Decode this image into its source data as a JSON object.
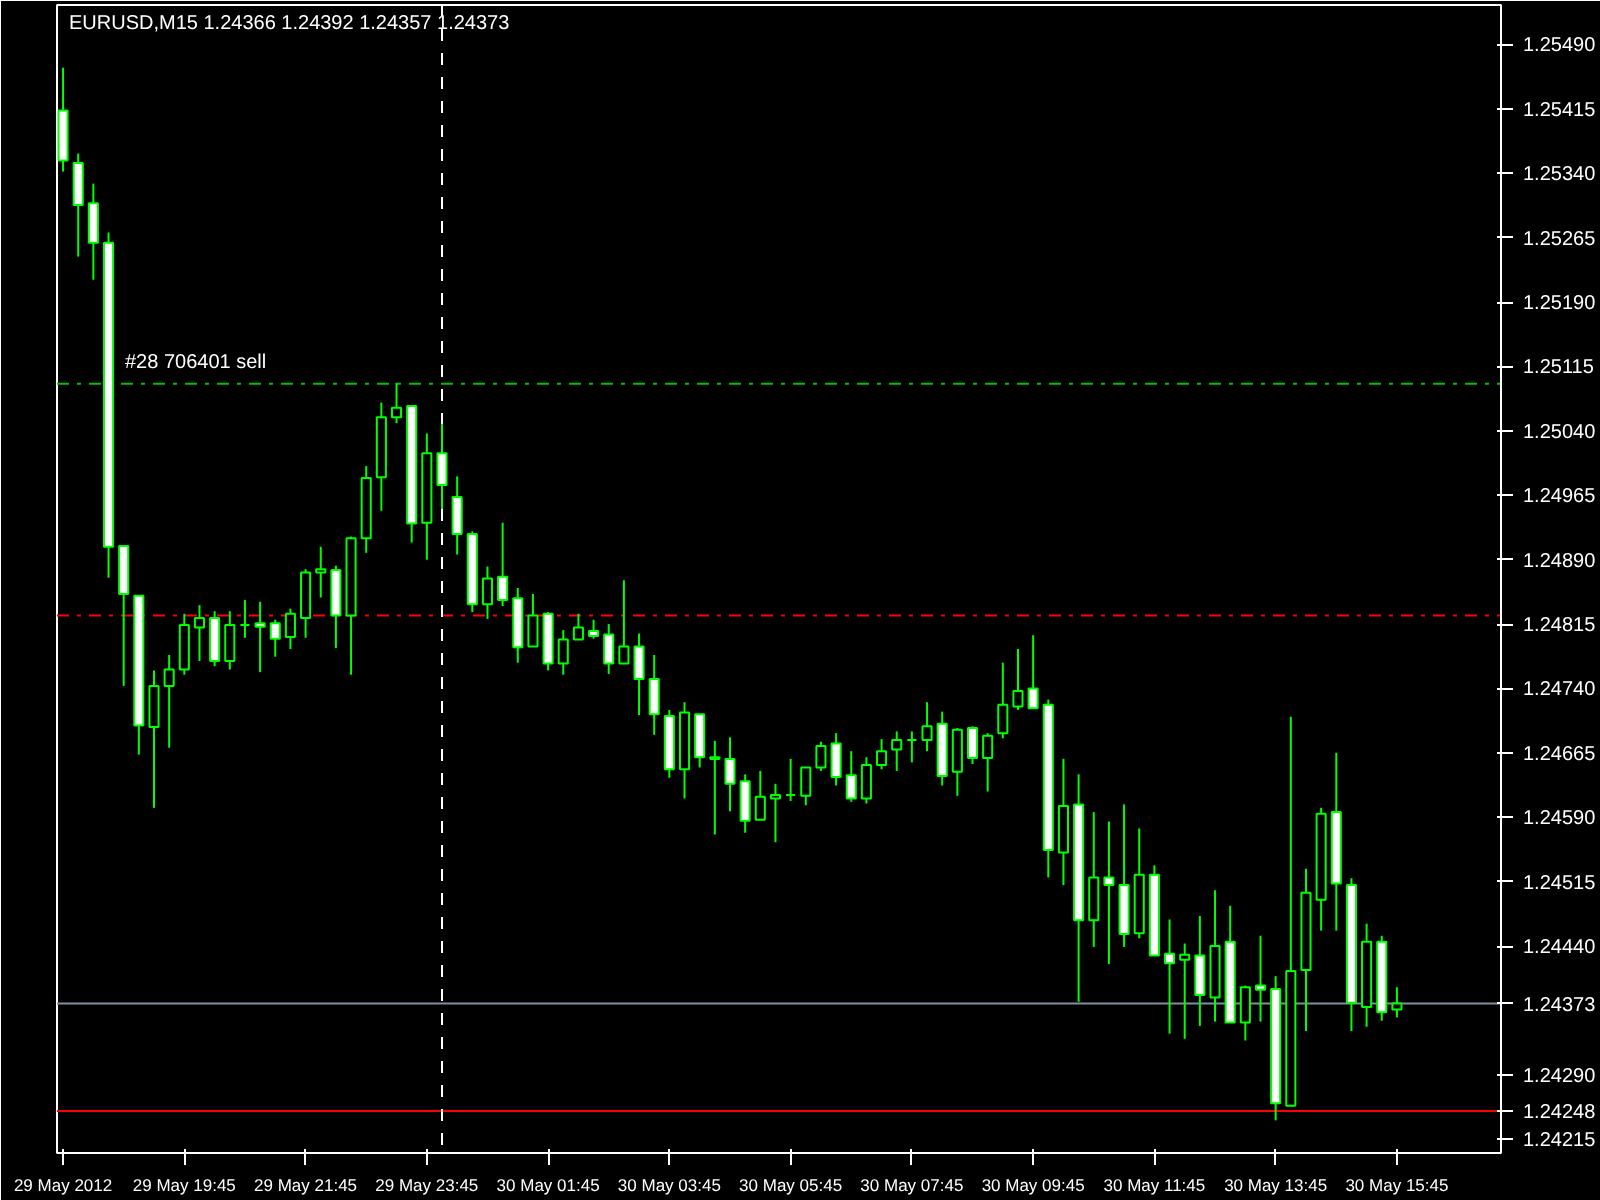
{
  "chart_data": {
    "type": "candlestick",
    "title": "EURUSD,M15  1.24366 1.24392 1.24357 1.24373",
    "color": "#00ff00",
    "grid": false,
    "x": [
      "2012-05-29T17:45",
      "2012-05-29T18:00",
      "2012-05-29T18:15",
      "2012-05-29T18:30",
      "2012-05-29T18:45",
      "2012-05-29T19:00",
      "2012-05-29T19:15",
      "2012-05-29T19:30",
      "2012-05-29T19:45",
      "2012-05-29T20:00",
      "2012-05-29T20:15",
      "2012-05-29T20:30",
      "2012-05-29T20:45",
      "2012-05-29T21:00",
      "2012-05-29T21:15",
      "2012-05-29T21:30",
      "2012-05-29T21:45",
      "2012-05-29T22:00",
      "2012-05-29T22:15",
      "2012-05-29T22:30",
      "2012-05-29T22:45",
      "2012-05-29T23:00",
      "2012-05-29T23:15",
      "2012-05-29T23:30",
      "2012-05-29T23:45",
      "2012-05-30T00:00",
      "2012-05-30T00:15",
      "2012-05-30T00:30",
      "2012-05-30T00:45",
      "2012-05-30T01:00",
      "2012-05-30T01:15",
      "2012-05-30T01:30",
      "2012-05-30T01:45",
      "2012-05-30T02:00",
      "2012-05-30T02:15",
      "2012-05-30T02:30",
      "2012-05-30T02:45",
      "2012-05-30T03:00",
      "2012-05-30T03:15",
      "2012-05-30T03:30",
      "2012-05-30T03:45",
      "2012-05-30T04:00",
      "2012-05-30T04:15",
      "2012-05-30T04:30",
      "2012-05-30T04:45",
      "2012-05-30T05:00",
      "2012-05-30T05:15",
      "2012-05-30T05:30",
      "2012-05-30T05:45",
      "2012-05-30T06:00",
      "2012-05-30T06:15",
      "2012-05-30T06:30",
      "2012-05-30T06:45",
      "2012-05-30T07:00",
      "2012-05-30T07:15",
      "2012-05-30T07:30",
      "2012-05-30T07:45",
      "2012-05-30T08:00",
      "2012-05-30T08:15",
      "2012-05-30T08:30",
      "2012-05-30T08:45",
      "2012-05-30T09:00",
      "2012-05-30T09:15",
      "2012-05-30T09:30",
      "2012-05-30T09:45",
      "2012-05-30T10:00",
      "2012-05-30T10:15",
      "2012-05-30T10:30",
      "2012-05-30T10:45",
      "2012-05-30T11:00",
      "2012-05-30T11:15",
      "2012-05-30T11:30",
      "2012-05-30T11:45",
      "2012-05-30T12:00",
      "2012-05-30T12:15",
      "2012-05-30T12:30",
      "2012-05-30T12:45",
      "2012-05-30T13:00",
      "2012-05-30T13:15",
      "2012-05-30T13:30",
      "2012-05-30T13:45",
      "2012-05-30T14:00",
      "2012-05-30T14:15",
      "2012-05-30T14:30",
      "2012-05-30T14:45",
      "2012-05-30T15:00",
      "2012-05-30T15:15",
      "2012-05-30T15:30",
      "2012-05-30T15:45"
    ],
    "ohlc": [
      [
        1.25413,
        1.25463,
        1.25342,
        1.25355
      ],
      [
        1.25352,
        1.25363,
        1.25243,
        1.25303
      ],
      [
        1.25305,
        1.25328,
        1.25216,
        1.25259
      ],
      [
        1.25259,
        1.25271,
        1.24869,
        1.24905
      ],
      [
        1.24906,
        1.24906,
        1.24743,
        1.2485
      ],
      [
        1.24848,
        1.24848,
        1.24663,
        1.24697
      ],
      [
        1.24695,
        1.24761,
        1.24601,
        1.24743
      ],
      [
        1.24743,
        1.24779,
        1.24671,
        1.24762
      ],
      [
        1.24762,
        1.24827,
        1.24756,
        1.24814
      ],
      [
        1.24811,
        1.24837,
        1.24772,
        1.24822
      ],
      [
        1.24822,
        1.2483,
        1.24766,
        1.24772
      ],
      [
        1.24772,
        1.2483,
        1.24762,
        1.24814
      ],
      [
        1.24814,
        1.24843,
        1.24799,
        1.24814
      ],
      [
        1.24816,
        1.24841,
        1.24759,
        1.24812
      ],
      [
        1.24816,
        1.2482,
        1.24777,
        1.24798
      ],
      [
        1.248,
        1.24833,
        1.24786,
        1.24827
      ],
      [
        1.24822,
        1.24879,
        1.24799,
        1.24875
      ],
      [
        1.24875,
        1.24905,
        1.24846,
        1.24879
      ],
      [
        1.24878,
        1.24883,
        1.24787,
        1.24825
      ],
      [
        1.24825,
        1.24917,
        1.24756,
        1.24915
      ],
      [
        1.24915,
        1.24999,
        1.24898,
        1.24985
      ],
      [
        1.24986,
        1.25073,
        1.24947,
        1.25056
      ],
      [
        1.25056,
        1.25096,
        1.25049,
        1.25067
      ],
      [
        1.25069,
        1.25069,
        1.2491,
        1.24932
      ],
      [
        1.24933,
        1.25037,
        1.2489,
        1.25014
      ],
      [
        1.25014,
        1.25048,
        1.24949,
        1.24977
      ],
      [
        1.24963,
        1.24987,
        1.24896,
        1.2492
      ],
      [
        1.2492,
        1.24923,
        1.24829,
        1.24838
      ],
      [
        1.24838,
        1.24882,
        1.24821,
        1.24868
      ],
      [
        1.2487,
        1.24933,
        1.24836,
        1.24843
      ],
      [
        1.24845,
        1.24857,
        1.2477,
        1.24788
      ],
      [
        1.24789,
        1.2485,
        1.24789,
        1.24825
      ],
      [
        1.24827,
        1.24829,
        1.24761,
        1.24769
      ],
      [
        1.24769,
        1.24808,
        1.24756,
        1.24797
      ],
      [
        1.24797,
        1.24827,
        1.24797,
        1.24811
      ],
      [
        1.24807,
        1.2482,
        1.24798,
        1.24801
      ],
      [
        1.24803,
        1.24815,
        1.24757,
        1.24769
      ],
      [
        1.24769,
        1.24866,
        1.24769,
        1.24789
      ],
      [
        1.24789,
        1.24804,
        1.24709,
        1.24751
      ],
      [
        1.24751,
        1.24779,
        1.24686,
        1.2471
      ],
      [
        1.24708,
        1.24715,
        1.24636,
        1.24646
      ],
      [
        1.24646,
        1.24724,
        1.24612,
        1.24712
      ],
      [
        1.2471,
        1.2471,
        1.24648,
        1.2466
      ],
      [
        1.2466,
        1.24679,
        1.2457,
        1.24658
      ],
      [
        1.24658,
        1.24683,
        1.24597,
        1.24629
      ],
      [
        1.24632,
        1.2464,
        1.24572,
        1.24586
      ],
      [
        1.24587,
        1.24644,
        1.24587,
        1.24614
      ],
      [
        1.24612,
        1.24629,
        1.24561,
        1.24616
      ],
      [
        1.24616,
        1.24658,
        1.24609,
        1.24616
      ],
      [
        1.24615,
        1.24648,
        1.24604,
        1.24648
      ],
      [
        1.24648,
        1.24678,
        1.24644,
        1.24673
      ],
      [
        1.24676,
        1.24688,
        1.24627,
        1.24637
      ],
      [
        1.24639,
        1.24667,
        1.24608,
        1.24612
      ],
      [
        1.24612,
        1.2466,
        1.24606,
        1.24651
      ],
      [
        1.24651,
        1.24681,
        1.24646,
        1.24667
      ],
      [
        1.24669,
        1.2469,
        1.24644,
        1.2468
      ],
      [
        1.2468,
        1.2469,
        1.24654,
        1.2468
      ],
      [
        1.2468,
        1.24724,
        1.24667,
        1.24696
      ],
      [
        1.24699,
        1.24713,
        1.24627,
        1.24638
      ],
      [
        1.24643,
        1.24694,
        1.24615,
        1.24692
      ],
      [
        1.24694,
        1.24696,
        1.24652,
        1.24659
      ],
      [
        1.24659,
        1.24688,
        1.2462,
        1.24685
      ],
      [
        1.24688,
        1.2477,
        1.24682,
        1.24721
      ],
      [
        1.24719,
        1.24786,
        1.24715,
        1.24737
      ],
      [
        1.2474,
        1.24802,
        1.24717,
        1.24717
      ],
      [
        1.24721,
        1.24727,
        1.2452,
        1.24552
      ],
      [
        1.24549,
        1.24658,
        1.24511,
        1.24603
      ],
      [
        1.24605,
        1.2464,
        1.24375,
        1.2447
      ],
      [
        1.2447,
        1.24596,
        1.24439,
        1.2452
      ],
      [
        1.2452,
        1.24585,
        1.24419,
        1.24511
      ],
      [
        1.24511,
        1.24605,
        1.24439,
        1.24454
      ],
      [
        1.24455,
        1.24577,
        1.24449,
        1.24523
      ],
      [
        1.24523,
        1.24534,
        1.24429,
        1.24429
      ],
      [
        1.24431,
        1.24471,
        1.24338,
        1.2442
      ],
      [
        1.24424,
        1.24443,
        1.24332,
        1.2443
      ],
      [
        1.24429,
        1.24475,
        1.24347,
        1.24383
      ],
      [
        1.2438,
        1.24505,
        1.24352,
        1.2444
      ],
      [
        1.24445,
        1.24487,
        1.24351,
        1.24351
      ],
      [
        1.24351,
        1.24394,
        1.2433,
        1.24392
      ],
      [
        1.24394,
        1.24452,
        1.24352,
        1.24389
      ],
      [
        1.2439,
        1.24405,
        1.24237,
        1.24257
      ],
      [
        1.24254,
        1.24707,
        1.24254,
        1.24411
      ],
      [
        1.24412,
        1.2453,
        1.24341,
        1.24502
      ],
      [
        1.24494,
        1.24601,
        1.24458,
        1.24594
      ],
      [
        1.24596,
        1.24665,
        1.24458,
        1.24513
      ],
      [
        1.24511,
        1.24519,
        1.24341,
        1.24374
      ],
      [
        1.24369,
        1.24466,
        1.24346,
        1.24445
      ],
      [
        1.24445,
        1.24452,
        1.24353,
        1.24363
      ],
      [
        1.24366,
        1.24392,
        1.24357,
        1.24373
      ]
    ],
    "xlim": [
      "2012-05-29T17:39",
      "2012-05-30T17:28"
    ],
    "xticks": [
      {
        "value": "2012-05-29T17:45",
        "label": "29 May 2012"
      },
      {
        "value": "2012-05-29T19:45",
        "label": "29 May 19:45"
      },
      {
        "value": "2012-05-29T21:45",
        "label": "29 May 21:45"
      },
      {
        "value": "2012-05-29T23:45",
        "label": "29 May 23:45"
      },
      {
        "value": "2012-05-30T01:45",
        "label": "30 May 01:45"
      },
      {
        "value": "2012-05-30T03:45",
        "label": "30 May 03:45"
      },
      {
        "value": "2012-05-30T05:45",
        "label": "30 May 05:45"
      },
      {
        "value": "2012-05-30T07:45",
        "label": "30 May 07:45"
      },
      {
        "value": "2012-05-30T09:45",
        "label": "30 May 09:45"
      },
      {
        "value": "2012-05-30T11:45",
        "label": "30 May 11:45"
      },
      {
        "value": "2012-05-30T13:45",
        "label": "30 May 13:45"
      },
      {
        "value": "2012-05-30T15:45",
        "label": "30 May 15:45"
      }
    ],
    "ylim": [
      1.24199,
      1.25536
    ],
    "yticks": [
      {
        "value": 1.24215,
        "label": "1.24215"
      },
      {
        "value": 1.2429,
        "label": "1.24290"
      },
      {
        "value": 1.2444,
        "label": "1.24440"
      },
      {
        "value": 1.24515,
        "label": "1.24515"
      },
      {
        "value": 1.2459,
        "label": "1.24590"
      },
      {
        "value": 1.24665,
        "label": "1.24665"
      },
      {
        "value": 1.2474,
        "label": "1.24740"
      },
      {
        "value": 1.24815,
        "label": "1.24815"
      },
      {
        "value": 1.2489,
        "label": "1.24890"
      },
      {
        "value": 1.24965,
        "label": "1.24965"
      },
      {
        "value": 1.2504,
        "label": "1.25040"
      },
      {
        "value": 1.25115,
        "label": "1.25115"
      },
      {
        "value": 1.2519,
        "label": "1.25190"
      },
      {
        "value": 1.25265,
        "label": "1.25265"
      },
      {
        "value": 1.2534,
        "label": "1.25340"
      },
      {
        "value": 1.25415,
        "label": "1.25415"
      },
      {
        "value": 1.2549,
        "label": "1.25490"
      }
    ],
    "ref_lines": [
      {
        "axis": "y",
        "value": 1.25095,
        "label": "#28 706401 sell",
        "color": "#00c000",
        "line_style": "dashed"
      },
      {
        "axis": "y",
        "value": 1.24825,
        "label": null,
        "color": "#ff0000",
        "line_style": "dashed"
      },
      {
        "axis": "y",
        "value": 1.24373,
        "label": "1.24373",
        "color": "#8090a0",
        "line_style": "solid"
      },
      {
        "axis": "y",
        "value": 1.24248,
        "label": "1.24248",
        "color": "#ff0000",
        "line_style": "solid"
      },
      {
        "axis": "x",
        "value": "2012-05-30T00:00",
        "label": null,
        "color": "#ffffff",
        "line_style": "dotted"
      }
    ]
  }
}
